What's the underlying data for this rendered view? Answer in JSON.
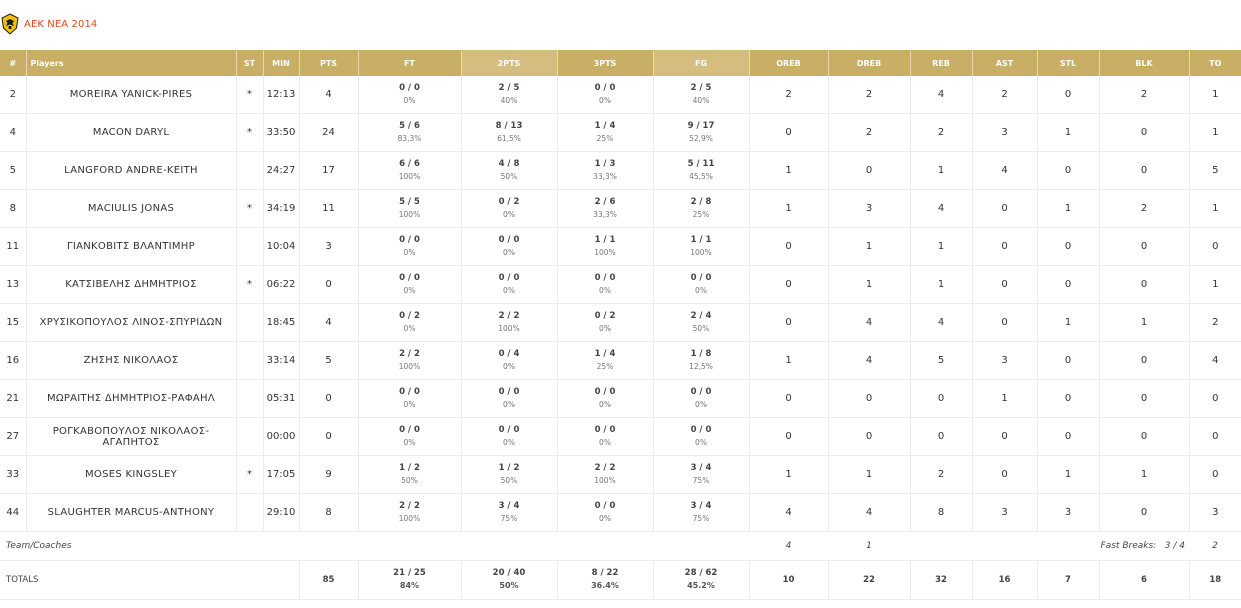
{
  "team": {
    "name": "AEK NEA 2014",
    "logo": "aek-eagle-logo"
  },
  "headers": [
    "#",
    "Players",
    "ST",
    "MIN",
    "PTS",
    "FT",
    "2PTS",
    "3PTS",
    "FG",
    "OREB",
    "DREB",
    "REB",
    "AST",
    "STL",
    "BLK",
    "TO"
  ],
  "players": [
    {
      "num": "2",
      "name": "MOREIRA YANICK-PIRES",
      "st": "*",
      "min": "12:13",
      "pts": "4",
      "ft": "0 / 0",
      "ft_pct": "0%",
      "p2": "2 / 5",
      "p2_pct": "40%",
      "p3": "0 / 0",
      "p3_pct": "0%",
      "fg": "2 / 5",
      "fg_pct": "40%",
      "oreb": "2",
      "dreb": "2",
      "reb": "4",
      "ast": "2",
      "stl": "0",
      "blk": "2",
      "to": "1"
    },
    {
      "num": "4",
      "name": "MACON DARYL",
      "st": "*",
      "min": "33:50",
      "pts": "24",
      "ft": "5 / 6",
      "ft_pct": "83,3%",
      "p2": "8 / 13",
      "p2_pct": "61,5%",
      "p3": "1 / 4",
      "p3_pct": "25%",
      "fg": "9 / 17",
      "fg_pct": "52,9%",
      "oreb": "0",
      "dreb": "2",
      "reb": "2",
      "ast": "3",
      "stl": "1",
      "blk": "0",
      "to": "1"
    },
    {
      "num": "5",
      "name": "LANGFORD ANDRE-KEITH",
      "st": "",
      "min": "24:27",
      "pts": "17",
      "ft": "6 / 6",
      "ft_pct": "100%",
      "p2": "4 / 8",
      "p2_pct": "50%",
      "p3": "1 / 3",
      "p3_pct": "33,3%",
      "fg": "5 / 11",
      "fg_pct": "45,5%",
      "oreb": "1",
      "dreb": "0",
      "reb": "1",
      "ast": "4",
      "stl": "0",
      "blk": "0",
      "to": "5"
    },
    {
      "num": "8",
      "name": "MACIULIS JONAS",
      "st": "*",
      "min": "34:19",
      "pts": "11",
      "ft": "5 / 5",
      "ft_pct": "100%",
      "p2": "0 / 2",
      "p2_pct": "0%",
      "p3": "2 / 6",
      "p3_pct": "33,3%",
      "fg": "2 / 8",
      "fg_pct": "25%",
      "oreb": "1",
      "dreb": "3",
      "reb": "4",
      "ast": "0",
      "stl": "1",
      "blk": "2",
      "to": "1"
    },
    {
      "num": "11",
      "name": "ΓΙΑΝΚΟΒΙΤΣ ΒΛΑΝΤΙΜΗΡ",
      "st": "",
      "min": "10:04",
      "pts": "3",
      "ft": "0 / 0",
      "ft_pct": "0%",
      "p2": "0 / 0",
      "p2_pct": "0%",
      "p3": "1 / 1",
      "p3_pct": "100%",
      "fg": "1 / 1",
      "fg_pct": "100%",
      "oreb": "0",
      "dreb": "1",
      "reb": "1",
      "ast": "0",
      "stl": "0",
      "blk": "0",
      "to": "0"
    },
    {
      "num": "13",
      "name": "ΚΑΤΣΙΒΕΛΗΣ ΔΗΜΗΤΡΙΟΣ",
      "st": "*",
      "min": "06:22",
      "pts": "0",
      "ft": "0 / 0",
      "ft_pct": "0%",
      "p2": "0 / 0",
      "p2_pct": "0%",
      "p3": "0 / 0",
      "p3_pct": "0%",
      "fg": "0 / 0",
      "fg_pct": "0%",
      "oreb": "0",
      "dreb": "1",
      "reb": "1",
      "ast": "0",
      "stl": "0",
      "blk": "0",
      "to": "1"
    },
    {
      "num": "15",
      "name": "ΧΡΥΣΙΚΟΠΟΥΛΟΣ ΛΙΝΟΣ-ΣΠΥΡΙΔΩΝ",
      "st": "",
      "min": "18:45",
      "pts": "4",
      "ft": "0 / 2",
      "ft_pct": "0%",
      "p2": "2 / 2",
      "p2_pct": "100%",
      "p3": "0 / 2",
      "p3_pct": "0%",
      "fg": "2 / 4",
      "fg_pct": "50%",
      "oreb": "0",
      "dreb": "4",
      "reb": "4",
      "ast": "0",
      "stl": "1",
      "blk": "1",
      "to": "2"
    },
    {
      "num": "16",
      "name": "ΖΗΣΗΣ ΝΙΚΟΛΑΟΣ",
      "st": "",
      "min": "33:14",
      "pts": "5",
      "ft": "2 / 2",
      "ft_pct": "100%",
      "p2": "0 / 4",
      "p2_pct": "0%",
      "p3": "1 / 4",
      "p3_pct": "25%",
      "fg": "1 / 8",
      "fg_pct": "12,5%",
      "oreb": "1",
      "dreb": "4",
      "reb": "5",
      "ast": "3",
      "stl": "0",
      "blk": "0",
      "to": "4"
    },
    {
      "num": "21",
      "name": "ΜΩΡΑΙΤΗΣ ΔΗΜΗΤΡΙΟΣ-ΡΑΦΑΗΛ",
      "st": "",
      "min": "05:31",
      "pts": "0",
      "ft": "0 / 0",
      "ft_pct": "0%",
      "p2": "0 / 0",
      "p2_pct": "0%",
      "p3": "0 / 0",
      "p3_pct": "0%",
      "fg": "0 / 0",
      "fg_pct": "0%",
      "oreb": "0",
      "dreb": "0",
      "reb": "0",
      "ast": "1",
      "stl": "0",
      "blk": "0",
      "to": "0"
    },
    {
      "num": "27",
      "name": "ΡΟΓΚΑΒΟΠΟΥΛΟΣ ΝΙΚΟΛΑΟΣ-ΑΓΑΠΗΤΟΣ",
      "st": "",
      "min": "00:00",
      "pts": "0",
      "ft": "0 / 0",
      "ft_pct": "0%",
      "p2": "0 / 0",
      "p2_pct": "0%",
      "p3": "0 / 0",
      "p3_pct": "0%",
      "fg": "0 / 0",
      "fg_pct": "0%",
      "oreb": "0",
      "dreb": "0",
      "reb": "0",
      "ast": "0",
      "stl": "0",
      "blk": "0",
      "to": "0"
    },
    {
      "num": "33",
      "name": "MOSES KINGSLEY",
      "st": "*",
      "min": "17:05",
      "pts": "9",
      "ft": "1 / 2",
      "ft_pct": "50%",
      "p2": "1 / 2",
      "p2_pct": "50%",
      "p3": "2 / 2",
      "p3_pct": "100%",
      "fg": "3 / 4",
      "fg_pct": "75%",
      "oreb": "1",
      "dreb": "1",
      "reb": "2",
      "ast": "0",
      "stl": "1",
      "blk": "1",
      "to": "0"
    },
    {
      "num": "44",
      "name": "SLAUGHTER MARCUS-ANTHONY",
      "st": "",
      "min": "29:10",
      "pts": "8",
      "ft": "2 / 2",
      "ft_pct": "100%",
      "p2": "3 / 4",
      "p2_pct": "75%",
      "p3": "0 / 0",
      "p3_pct": "0%",
      "fg": "3 / 4",
      "fg_pct": "75%",
      "oreb": "4",
      "dreb": "4",
      "reb": "8",
      "ast": "3",
      "stl": "3",
      "blk": "0",
      "to": "3"
    }
  ],
  "team_row": {
    "label": "Team/Coaches",
    "oreb": "4",
    "dreb": "1",
    "fast_breaks_label": "Fast Breaks:",
    "fast_breaks_value": "3 / 4",
    "to": "2"
  },
  "totals": {
    "label": "TOTALS",
    "pts": "85",
    "ft": "21 / 25",
    "ft_pct": "84%",
    "p2": "20 / 40",
    "p2_pct": "50%",
    "p3": "8 / 22",
    "p3_pct": "36.4%",
    "fg": "28 / 62",
    "fg_pct": "45.2%",
    "oreb": "10",
    "dreb": "22",
    "reb": "32",
    "ast": "16",
    "stl": "7",
    "blk": "6",
    "to": "18"
  }
}
